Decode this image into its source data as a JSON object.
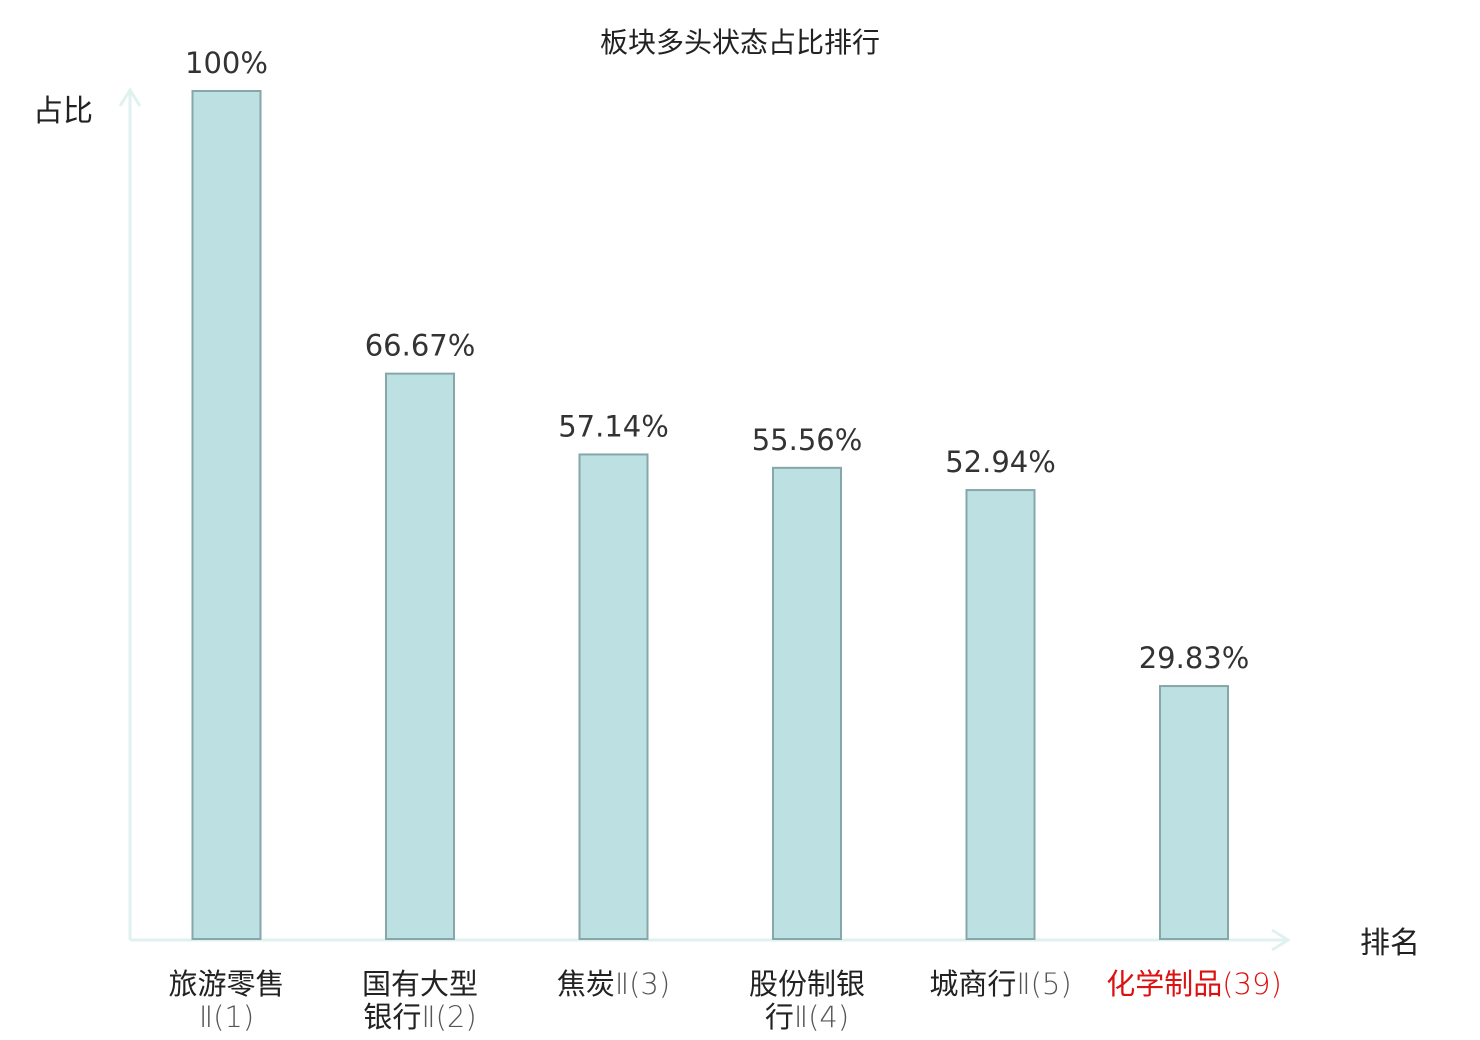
{
  "chart_data": {
    "type": "bar",
    "title": "板块多头状态占比排行",
    "ylabel": "占比",
    "xlabel": "排名",
    "ylim": [
      0,
      100
    ],
    "grid": false,
    "unit": "%",
    "categories": [
      {
        "lines": [
          "旅游零售",
          "Ⅱ(1)"
        ],
        "label": "旅游零售Ⅱ(1)",
        "highlight": false
      },
      {
        "lines": [
          "国有大型",
          "银行Ⅱ(2)"
        ],
        "label": "国有大型银行Ⅱ(2)",
        "highlight": false
      },
      {
        "lines": [
          "焦炭Ⅱ(3)"
        ],
        "label": "焦炭Ⅱ(3)",
        "highlight": false
      },
      {
        "lines": [
          "股份制银",
          "行Ⅱ(4)"
        ],
        "label": "股份制银行Ⅱ(4)",
        "highlight": false
      },
      {
        "lines": [
          "城商行Ⅱ(5)"
        ],
        "label": "城商行Ⅱ(5)",
        "highlight": false
      },
      {
        "lines": [
          "化学制品(39)"
        ],
        "label": "化学制品(39)",
        "highlight": true
      }
    ],
    "values": [
      100,
      66.67,
      57.14,
      55.56,
      52.94,
      29.83
    ],
    "value_labels": [
      "100%",
      "66.67%",
      "57.14%",
      "55.56%",
      "52.94%",
      "29.83%"
    ]
  },
  "colors": {
    "bar_fill": "#bde0e3",
    "bar_stroke": "#86a7aa",
    "axis": "#e0f2ef",
    "highlight_text": "#dd1111"
  }
}
